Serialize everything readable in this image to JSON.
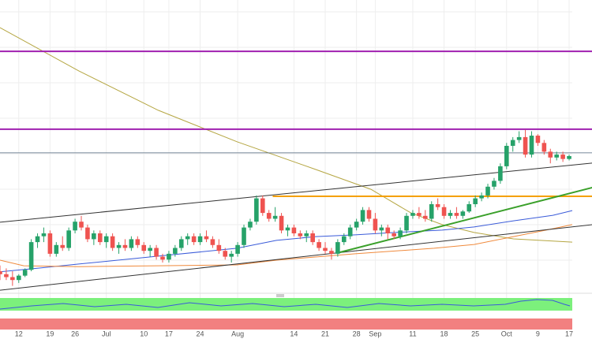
{
  "chart_data": {
    "type": "candlestick",
    "xlim": [
      0,
      91.5
    ],
    "ylim": [
      0,
      100
    ],
    "xticks": [
      {
        "value": 3,
        "label": "12"
      },
      {
        "value": 8,
        "label": "19"
      },
      {
        "value": 12,
        "label": "26"
      },
      {
        "value": 17,
        "label": "Jul"
      },
      {
        "value": 23,
        "label": "10"
      },
      {
        "value": 27,
        "label": "17"
      },
      {
        "value": 32,
        "label": "24"
      },
      {
        "value": 38,
        "label": "Aug"
      },
      {
        "value": 47,
        "label": "14"
      },
      {
        "value": 52,
        "label": "21"
      },
      {
        "value": 57,
        "label": "28"
      },
      {
        "value": 60,
        "label": "Sep"
      },
      {
        "value": 66,
        "label": "11"
      },
      {
        "value": 71,
        "label": "18"
      },
      {
        "value": 76,
        "label": "25"
      },
      {
        "value": 81,
        "label": "Oct"
      },
      {
        "value": 86,
        "label": "9"
      },
      {
        "value": 91,
        "label": "17"
      }
    ],
    "grid": true,
    "up_color": "#26a269",
    "down_color": "#ef5350",
    "candles": [
      [
        7,
        9,
        4,
        6
      ],
      [
        6,
        8,
        4,
        5
      ],
      [
        5,
        7,
        2,
        4
      ],
      [
        4,
        6,
        3,
        5.5
      ],
      [
        5.5,
        8,
        5,
        7.5
      ],
      [
        7.5,
        18,
        7,
        17
      ],
      [
        17,
        20,
        15,
        19
      ],
      [
        19,
        22,
        17,
        20
      ],
      [
        20,
        21,
        12,
        13
      ],
      [
        13,
        17,
        12,
        16
      ],
      [
        16,
        19,
        14,
        15
      ],
      [
        15,
        22,
        14,
        21
      ],
      [
        21,
        25,
        20,
        24
      ],
      [
        24,
        26,
        21,
        22
      ],
      [
        22,
        23,
        17,
        18
      ],
      [
        18,
        21,
        16,
        20
      ],
      [
        20,
        21,
        16,
        17
      ],
      [
        17,
        20,
        15,
        19
      ],
      [
        19,
        20,
        14,
        15
      ],
      [
        15,
        17,
        13,
        16
      ],
      [
        16,
        18,
        14,
        15
      ],
      [
        15,
        19,
        14,
        18
      ],
      [
        18,
        19,
        15,
        16
      ],
      [
        16,
        17,
        13,
        14
      ],
      [
        14,
        16,
        12,
        15
      ],
      [
        15,
        16,
        11,
        12
      ],
      [
        12,
        13,
        10,
        11
      ],
      [
        11,
        14,
        10,
        13
      ],
      [
        13,
        16,
        12,
        15
      ],
      [
        15,
        19,
        14,
        18
      ],
      [
        18,
        20,
        16,
        19
      ],
      [
        19,
        20,
        16,
        17
      ],
      [
        17,
        20,
        16,
        19
      ],
      [
        19,
        21,
        17,
        18
      ],
      [
        18,
        19,
        15,
        16
      ],
      [
        16,
        18,
        13,
        14
      ],
      [
        14,
        15,
        11,
        12
      ],
      [
        12,
        14,
        10,
        13
      ],
      [
        13,
        17,
        12,
        16
      ],
      [
        16,
        23,
        15,
        22
      ],
      [
        22,
        25,
        21,
        24
      ],
      [
        24,
        33,
        23,
        32
      ],
      [
        32,
        33,
        26,
        27
      ],
      [
        27,
        28,
        24,
        25
      ],
      [
        25,
        29,
        24,
        26
      ],
      [
        26,
        27,
        20,
        21
      ],
      [
        21,
        23,
        19,
        22
      ],
      [
        22,
        23,
        19,
        20
      ],
      [
        20,
        21,
        18,
        19
      ],
      [
        19,
        21,
        17,
        20
      ],
      [
        20,
        21,
        16,
        17
      ],
      [
        17,
        18,
        14,
        15
      ],
      [
        15,
        17,
        13,
        14
      ],
      [
        14,
        15,
        11,
        13
      ],
      [
        13,
        18,
        12,
        17
      ],
      [
        17,
        20,
        16,
        19
      ],
      [
        19,
        23,
        18,
        22
      ],
      [
        22,
        25,
        21,
        24
      ],
      [
        24,
        29,
        23,
        28
      ],
      [
        28,
        29,
        24,
        25
      ],
      [
        25,
        27,
        20,
        21
      ],
      [
        21,
        23,
        19,
        22
      ],
      [
        22,
        23,
        18,
        20
      ],
      [
        20,
        21,
        18,
        19
      ],
      [
        19,
        22,
        18,
        21
      ],
      [
        21,
        27,
        20,
        26
      ],
      [
        26,
        28,
        25,
        27
      ],
      [
        27,
        29,
        25,
        26
      ],
      [
        26,
        28,
        24,
        25
      ],
      [
        25,
        31,
        24,
        30
      ],
      [
        30,
        32,
        28,
        29
      ],
      [
        29,
        30,
        25,
        26
      ],
      [
        26,
        28,
        25,
        27
      ],
      [
        27,
        29,
        25,
        26
      ],
      [
        26,
        28,
        25,
        27.5
      ],
      [
        27.5,
        31,
        27,
        30
      ],
      [
        30,
        33,
        29,
        32
      ],
      [
        32,
        34,
        31,
        33
      ],
      [
        33,
        37,
        32,
        36
      ],
      [
        36,
        39,
        35,
        38
      ],
      [
        38,
        44,
        37,
        43
      ],
      [
        43,
        51,
        42,
        50
      ],
      [
        50,
        53,
        48,
        52
      ],
      [
        52,
        55,
        51,
        53
      ],
      [
        53,
        55.5,
        46,
        47
      ],
      [
        47,
        55,
        46,
        53.5
      ],
      [
        53.5,
        54,
        50,
        51
      ],
      [
        51,
        52,
        47,
        48
      ],
      [
        48,
        49,
        44,
        46
      ],
      [
        46,
        48,
        45,
        47
      ],
      [
        47,
        48,
        44.5,
        45.5
      ],
      [
        45.5,
        47,
        45,
        46.5
      ]
    ],
    "lines": [
      {
        "color": "#b5a642",
        "width": 1,
        "x": [
          0,
          12.6,
          25.3,
          37.9,
          50.5,
          59.3,
          65.7,
          70.7,
          75.8,
          82.1,
          91.5
        ],
        "values": [
          90.5,
          75.7,
          62.2,
          51.4,
          41.9,
          35.1,
          27,
          23,
          20.3,
          18.1,
          17
        ]
      },
      {
        "color": "#3a5bd9",
        "width": 1,
        "x": [
          0,
          6.3,
          12.6,
          25.3,
          37.9,
          44.2,
          50.5,
          56.8,
          63.1,
          70.7,
          75.8,
          82.1,
          88.4,
          91.5
        ],
        "values": [
          6.8,
          8.1,
          9.5,
          12.2,
          14.9,
          17.6,
          18.9,
          19.5,
          20.3,
          21.1,
          22.2,
          24.3,
          26.2,
          27.8
        ]
      },
      {
        "color": "#f08a3c",
        "width": 1,
        "x": [
          0,
          3.8,
          12.6,
          25.3,
          37.9,
          44.2,
          56.8,
          69.4,
          75.8,
          82.1,
          88.4,
          91.5
        ],
        "values": [
          10.8,
          8.9,
          8.6,
          8.9,
          9.2,
          10.8,
          13,
          14.9,
          16.2,
          18.9,
          21.6,
          23
        ]
      },
      {
        "color": "#a020b0",
        "width": 2,
        "x": [
          0,
          94.7
        ],
        "values": [
          82.4,
          82.4
        ]
      },
      {
        "color": "#a020b0",
        "width": 2,
        "x": [
          0,
          94.7
        ],
        "values": [
          55.7,
          55.7
        ]
      },
      {
        "color": "#4a6178",
        "width": 0.8,
        "x": [
          0,
          94.7
        ],
        "values": [
          47.6,
          47.6
        ]
      },
      {
        "color": "#f5a000",
        "width": 2,
        "x": [
          43.6,
          94.7
        ],
        "values": [
          32.7,
          32.7
        ]
      },
      {
        "color": "#333333",
        "width": 1,
        "x": [
          0,
          94.7
        ],
        "values": [
          23.8,
          44.1
        ]
      },
      {
        "color": "#333333",
        "width": 1,
        "x": [
          0,
          94.7
        ],
        "values": [
          0.5,
          23
        ]
      },
      {
        "color": "#3aa02a",
        "width": 2,
        "x": [
          54.3,
          94.7
        ],
        "values": [
          13.5,
          35.7
        ]
      }
    ]
  }
}
